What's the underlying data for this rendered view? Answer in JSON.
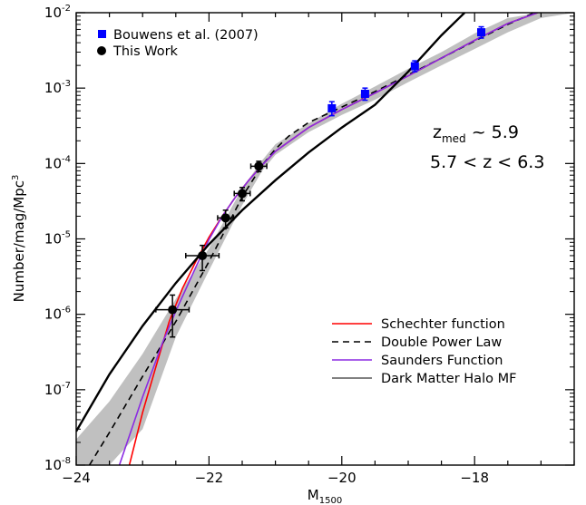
{
  "chart_data": {
    "type": "scatter",
    "xlabel": "M",
    "xlabel_sub": "1500",
    "ylabel": "Number/mag/Mpc",
    "ylabel_sup": "3",
    "xlim": [
      -24,
      -16.5
    ],
    "ylim": [
      1e-08,
      0.01
    ],
    "yscale": "log",
    "x_ticks": [
      -24,
      -22,
      -20,
      -18
    ],
    "x_tick_labels": [
      "−24",
      "−22",
      "−20",
      "−18"
    ],
    "y_ticks": [
      1e-08,
      1e-07,
      1e-06,
      1e-05,
      0.0001,
      0.001,
      0.01
    ],
    "y_tick_labels": [
      {
        "base": "10",
        "exp": "-8"
      },
      {
        "base": "10",
        "exp": "-7"
      },
      {
        "base": "10",
        "exp": "-6"
      },
      {
        "base": "10",
        "exp": "-5"
      },
      {
        "base": "10",
        "exp": "-4"
      },
      {
        "base": "10",
        "exp": "-3"
      },
      {
        "base": "10",
        "exp": "-2"
      }
    ],
    "annotations": [
      {
        "base": "z",
        "sub": "med",
        "rest": " ~ 5.9"
      },
      {
        "text": "5.7 < z < 6.3"
      }
    ],
    "series": [
      {
        "name": "Bouwens et al. (2007)",
        "marker": "square",
        "color": "#0000ff",
        "x": [
          -20.15,
          -19.65,
          -18.9,
          -17.9
        ],
        "y": [
          0.00054,
          0.00084,
          0.00195,
          0.0055
        ],
        "yerr_low": [
          0.00043,
          0.00069,
          0.00165,
          0.0046
        ],
        "yerr_high": [
          0.00066,
          0.001,
          0.0023,
          0.0065
        ]
      },
      {
        "name": "This Work",
        "marker": "circle",
        "color": "#000000",
        "x": [
          -22.55,
          -22.1,
          -21.75,
          -21.5,
          -21.25
        ],
        "y": [
          1.15e-06,
          6e-06,
          1.9e-05,
          4e-05,
          9.2e-05
        ],
        "xerr": [
          0.25,
          0.25,
          0.12,
          0.12,
          0.12
        ],
        "yerr_low": [
          5e-07,
          3.8e-06,
          1.4e-05,
          3.2e-05,
          7.8e-05
        ],
        "yerr_high": [
          1.8e-06,
          8.2e-06,
          2.4e-05,
          4.8e-05,
          0.000107
        ]
      }
    ],
    "curves": [
      {
        "name": "Schechter function",
        "color": "#ff0000",
        "style": "solid",
        "x": [
          -23.2,
          -23.0,
          -22.8,
          -22.6,
          -22.4,
          -22.2,
          -22.0,
          -21.8,
          -21.6,
          -21.4,
          -21.2,
          -21.0,
          -20.5,
          -20.0,
          -19.5,
          -19.0,
          -18.5,
          -18.0,
          -17.5,
          -17.05
        ],
        "y": [
          1e-08,
          5e-08,
          2e-07,
          8e-07,
          2.2e-06,
          5e-06,
          1.05e-05,
          2e-05,
          3.6e-05,
          6e-05,
          9.5e-05,
          0.000145,
          0.0003,
          0.00052,
          0.00086,
          0.00145,
          0.0025,
          0.0043,
          0.0072,
          0.01
        ]
      },
      {
        "name": "Double Power Law",
        "color": "#000000",
        "style": "dashed",
        "x": [
          -23.8,
          -23.5,
          -23.0,
          -22.5,
          -22.0,
          -21.5,
          -21.2,
          -21.0,
          -20.8,
          -20.5,
          -20.0,
          -19.5,
          -19.0,
          -18.5,
          -18.0,
          -17.5,
          -17.1
        ],
        "y": [
          1e-08,
          2.7e-08,
          1.5e-07,
          8e-07,
          5e-06,
          3.6e-05,
          9.5e-05,
          0.000155,
          0.00023,
          0.00035,
          0.00056,
          0.0009,
          0.0015,
          0.0025,
          0.0042,
          0.007,
          0.01
        ]
      },
      {
        "name": "Saunders Function",
        "color": "#8b2be2",
        "style": "solid",
        "x": [
          -23.35,
          -23.0,
          -22.7,
          -22.5,
          -22.2,
          -22.0,
          -21.8,
          -21.6,
          -21.4,
          -21.2,
          -21.0,
          -20.5,
          -20.0,
          -19.5,
          -19.0,
          -18.5,
          -18.0,
          -17.5,
          -17.05
        ],
        "y": [
          1e-08,
          8e-08,
          4.2e-07,
          1.1e-06,
          4.2e-06,
          9.8e-06,
          2e-05,
          3.6e-05,
          6e-05,
          9.5e-05,
          0.000145,
          0.0003,
          0.00052,
          0.00086,
          0.00145,
          0.0025,
          0.0043,
          0.0072,
          0.01
        ]
      },
      {
        "name": "Dark Matter Halo MF",
        "color": "#000000",
        "style": "solid",
        "width": 2.4,
        "x": [
          -24.0,
          -23.5,
          -23.0,
          -22.5,
          -22.0,
          -21.5,
          -21.0,
          -20.5,
          -20.0,
          -19.5,
          -19.0,
          -18.5,
          -18.15
        ],
        "y": [
          2.8e-08,
          1.6e-07,
          7e-07,
          2.6e-06,
          8.5e-06,
          2.4e-05,
          6e-05,
          0.00014,
          0.0003,
          0.0006,
          0.00165,
          0.005,
          0.01
        ]
      }
    ],
    "band": {
      "color": "#c0c0c0",
      "x": [
        -24.0,
        -23.5,
        -23.0,
        -22.5,
        -22.0,
        -21.5,
        -21.2,
        -21.0,
        -20.5,
        -20.0,
        -19.5,
        -19.0,
        -18.5,
        -18.0,
        -17.5,
        -17.0,
        -16.5
      ],
      "low": [
        1e-08,
        1e-08,
        3e-08,
        5e-07,
        3.8e-06,
        2.8e-05,
        8e-05,
        0.00013,
        0.00026,
        0.00044,
        0.0007,
        0.0012,
        0.002,
        0.0033,
        0.0055,
        0.0085,
        0.01
      ],
      "high": [
        2.2e-08,
        7e-08,
        3e-07,
        1.6e-06,
        7.5e-06,
        4.7e-05,
        0.00011,
        0.00018,
        0.00034,
        0.00062,
        0.00105,
        0.0018,
        0.003,
        0.0053,
        0.0085,
        0.01,
        0.01
      ]
    },
    "legend_top": {
      "placement": "top-left"
    },
    "legend_bottom": {
      "placement": "bottom-right"
    }
  }
}
